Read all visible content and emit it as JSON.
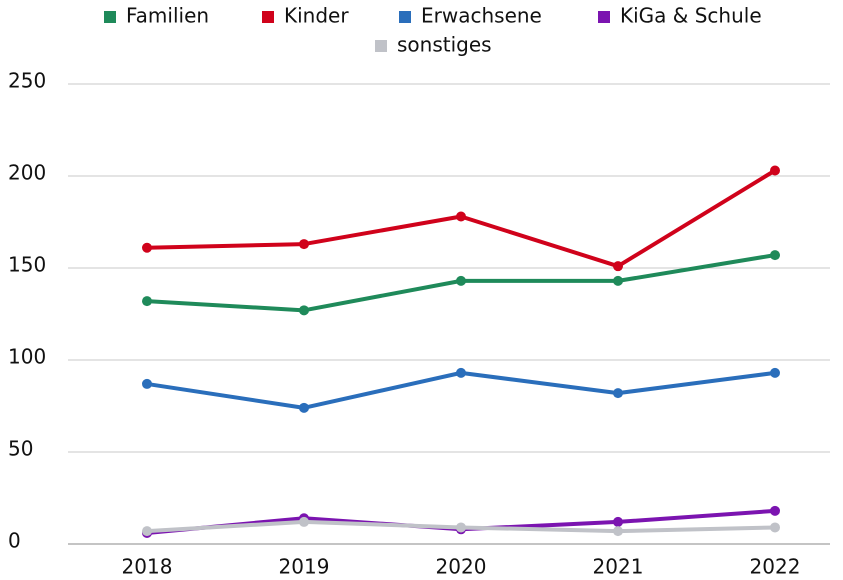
{
  "chart_data": {
    "type": "line",
    "categories": [
      "2018",
      "2019",
      "2020",
      "2021",
      "2022"
    ],
    "series": [
      {
        "name": "Familien",
        "color": "#1f8a5a",
        "values": [
          132,
          127,
          143,
          143,
          157
        ]
      },
      {
        "name": "Kinder",
        "color": "#d0021b",
        "values": [
          161,
          163,
          178,
          151,
          203
        ]
      },
      {
        "name": "Erwachsene",
        "color": "#2a6ebb",
        "values": [
          87,
          74,
          93,
          82,
          93
        ]
      },
      {
        "name": "KiGa & Schule",
        "color": "#7b14b0",
        "values": [
          6,
          14,
          8,
          12,
          18
        ]
      },
      {
        "name": "sonstiges",
        "color": "#c0c2c8",
        "values": [
          7,
          12,
          9,
          7,
          9
        ]
      }
    ],
    "ylim": [
      0,
      250
    ],
    "yticks": [
      0,
      50,
      100,
      150,
      200,
      250
    ],
    "grid": true,
    "legend": "top"
  }
}
